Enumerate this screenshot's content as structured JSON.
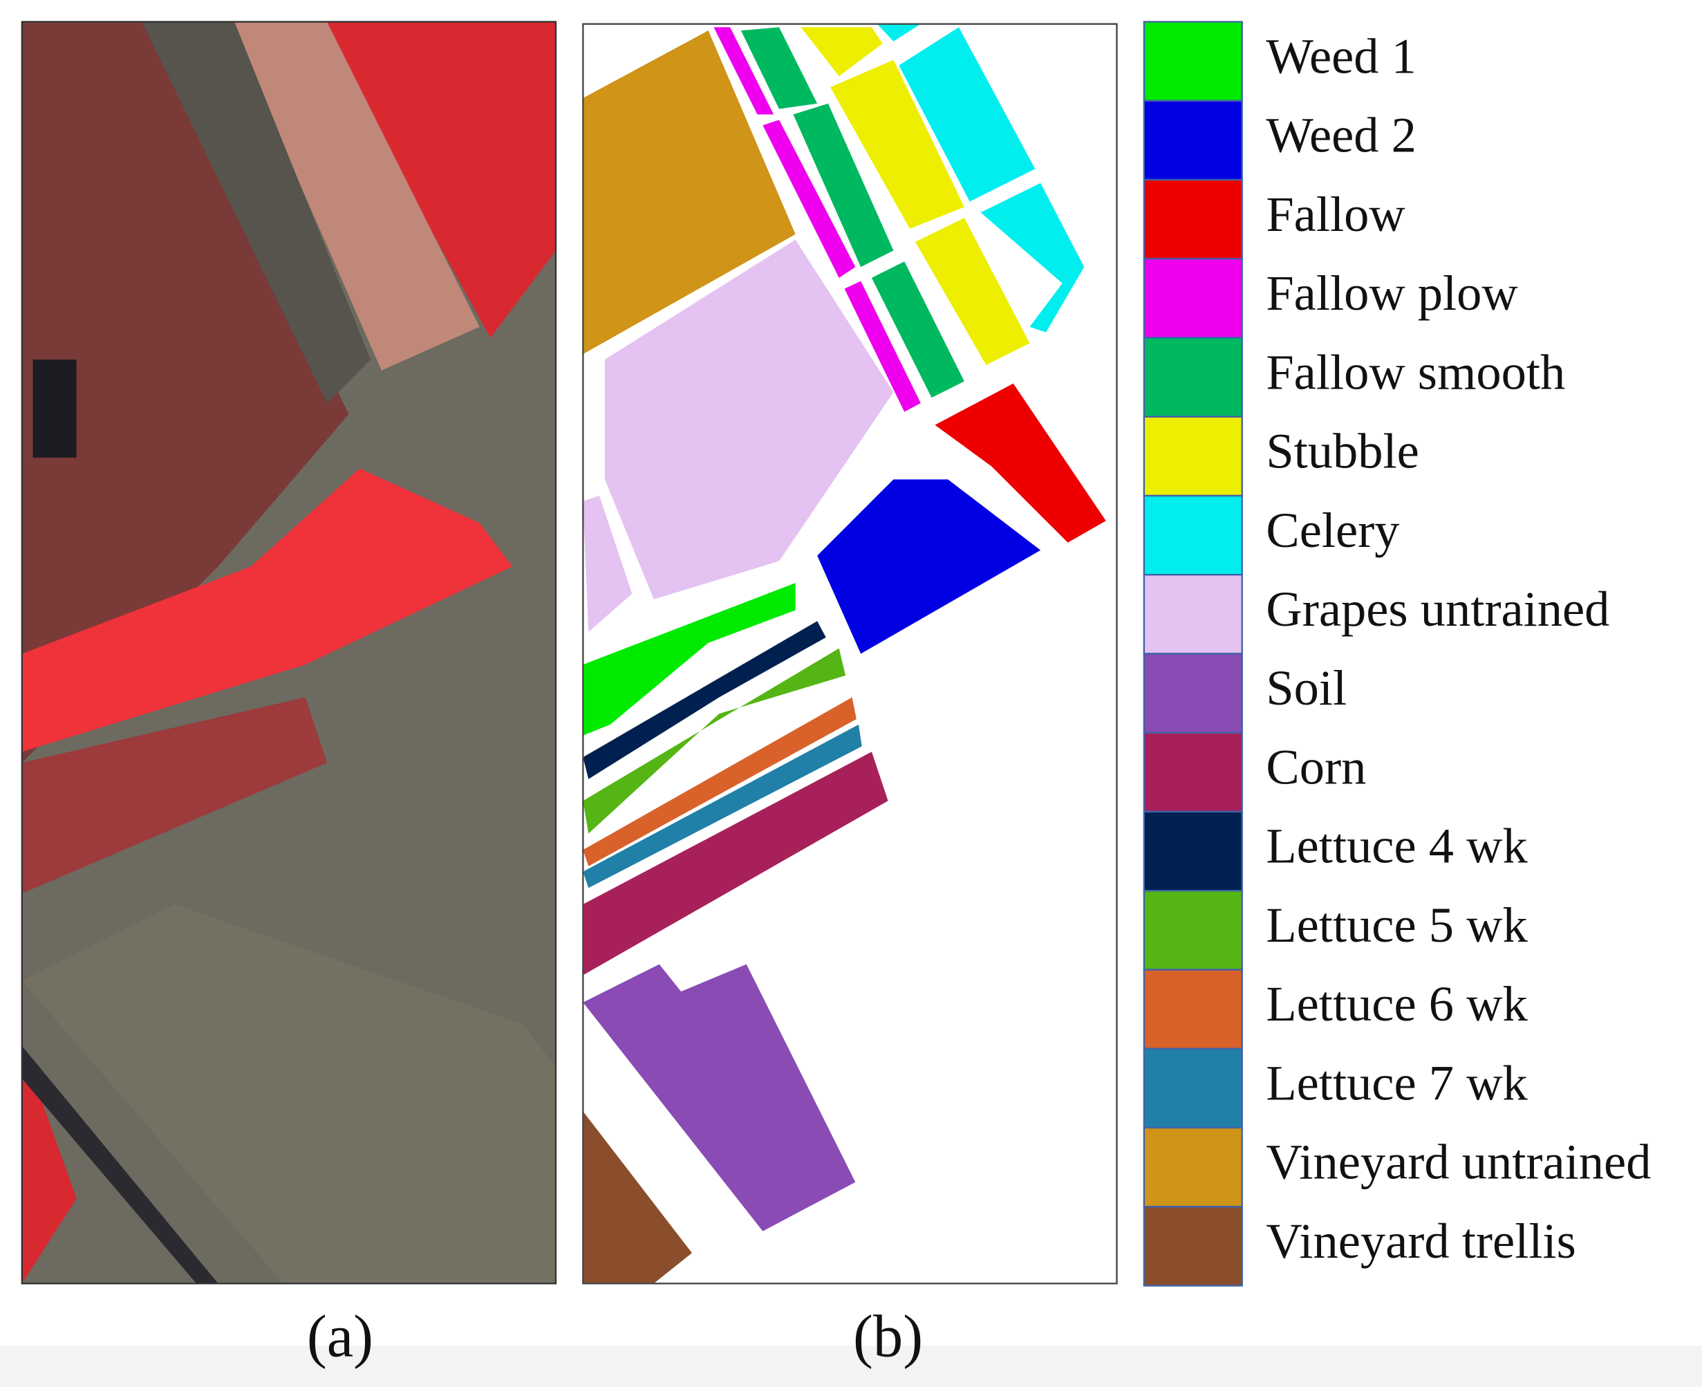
{
  "panels": [
    {
      "label": "(a)"
    },
    {
      "label": "(b)"
    }
  ],
  "legend": [
    {
      "label": "Weed 1",
      "color": "#00ea00"
    },
    {
      "label": "Weed 2",
      "color": "#0000e2"
    },
    {
      "label": "Fallow",
      "color": "#ee0000"
    },
    {
      "label": "Fallow plow",
      "color": "#ee00ee"
    },
    {
      "label": "Fallow smooth",
      "color": "#00b860"
    },
    {
      "label": "Stubble",
      "color": "#eeee00"
    },
    {
      "label": "Celery",
      "color": "#00eeee"
    },
    {
      "label": "Grapes untrained",
      "color": "#e4c2f2"
    },
    {
      "label": "Soil",
      "color": "#8a4cb4"
    },
    {
      "label": "Corn",
      "color": "#a8205a"
    },
    {
      "label": "Lettuce 4 wk",
      "color": "#00214f"
    },
    {
      "label": "Lettuce 5 wk",
      "color": "#55b515"
    },
    {
      "label": "Lettuce 6 wk",
      "color": "#d8622a"
    },
    {
      "label": "Lettuce 7 wk",
      "color": "#2080a8"
    },
    {
      "label": "Vineyard untrained",
      "color": "#cf9418"
    },
    {
      "label": "Vineyard trellis",
      "color": "#8a4e2c"
    }
  ]
}
